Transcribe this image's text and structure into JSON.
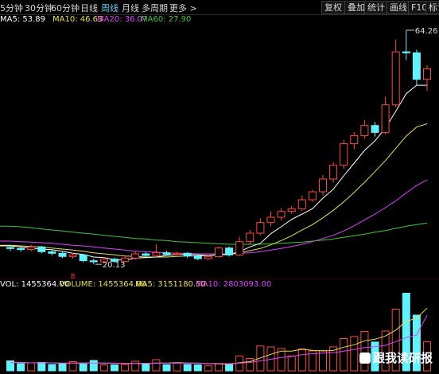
{
  "toolbar": {
    "periods": [
      "5分钟",
      "30分钟",
      "60分钟",
      "日线",
      "周线",
      "月线",
      "多周期",
      "更多 >"
    ],
    "active_period": "周线",
    "right_buttons": [
      "复权",
      "叠加",
      "统计",
      "画线",
      "F10",
      "标记"
    ]
  },
  "ma_legend": {
    "ma5": "MA5: 53.89",
    "ma10": "MA10: 46.63",
    "ma20": "MA20: 36.07",
    "ma60": "MA60: 27.90"
  },
  "vol_legend": {
    "vol": "VOL: 1455364.00",
    "volume": "VOLUME: 1455364.00",
    "ma5": "MA5: 3151180.50",
    "ma10": "MA10: 2803093.00"
  },
  "annotations": {
    "high": "64.26",
    "low": "20.13",
    "marker": "8"
  },
  "watermark": "跟我读研报",
  "colors": {
    "up": "#ff4a3a",
    "down": "#5ff2ff",
    "ma5": "#ffffff",
    "ma10": "#e8e04a",
    "ma20": "#e040ff",
    "ma60": "#3ac83a",
    "active_tab": "#5fd3ff"
  },
  "chart_data": {
    "type": "candlestick",
    "period": "weekly",
    "candles": [
      [
        23.3,
        23.1,
        23.8,
        22.6
      ],
      [
        23.1,
        22.9,
        23.5,
        22.5
      ],
      [
        22.9,
        23.4,
        23.8,
        22.6
      ],
      [
        23.4,
        22.5,
        23.6,
        22.2
      ],
      [
        22.5,
        22.2,
        22.9,
        21.8
      ],
      [
        22.2,
        21.6,
        22.6,
        21.3
      ],
      [
        21.6,
        21.9,
        22.3,
        21.2
      ],
      [
        21.9,
        20.8,
        22.1,
        20.5
      ],
      [
        20.8,
        20.6,
        21.2,
        20.13
      ],
      [
        20.6,
        21.1,
        21.5,
        20.3
      ],
      [
        21.1,
        20.7,
        21.4,
        20.4
      ],
      [
        20.7,
        21.3,
        21.8,
        20.5
      ],
      [
        21.3,
        22.1,
        22.6,
        21.0
      ],
      [
        22.1,
        21.8,
        22.5,
        21.5
      ],
      [
        21.8,
        22.3,
        23.9,
        21.6
      ],
      [
        22.3,
        22.0,
        22.7,
        21.7
      ],
      [
        22.0,
        22.2,
        22.5,
        21.8
      ],
      [
        22.2,
        21.7,
        22.4,
        21.3
      ],
      [
        21.7,
        21.2,
        22.0,
        20.9
      ],
      [
        21.2,
        21.6,
        21.9,
        21.0
      ],
      [
        21.6,
        23.2,
        23.5,
        21.4
      ],
      [
        23.2,
        21.9,
        23.5,
        21.6
      ],
      [
        21.9,
        24.4,
        25.3,
        21.7
      ],
      [
        24.4,
        26.0,
        26.6,
        23.9
      ],
      [
        26.0,
        28.0,
        28.8,
        25.6
      ],
      [
        28.0,
        29.0,
        30.1,
        27.3
      ],
      [
        29.0,
        30.1,
        30.7,
        28.4
      ],
      [
        30.1,
        30.6,
        31.1,
        29.6
      ],
      [
        30.6,
        32.3,
        33.1,
        30.2
      ],
      [
        32.3,
        33.8,
        34.2,
        31.9
      ],
      [
        33.8,
        36.2,
        37.0,
        33.1
      ],
      [
        36.2,
        38.8,
        39.4,
        35.5
      ],
      [
        38.8,
        42.9,
        43.6,
        38.1
      ],
      [
        42.9,
        44.4,
        45.1,
        41.8
      ],
      [
        44.4,
        46.3,
        47.3,
        43.8
      ],
      [
        46.3,
        45.0,
        47.0,
        44.2
      ],
      [
        45.0,
        50.2,
        51.7,
        44.6
      ],
      [
        50.2,
        60.2,
        62.5,
        49.7
      ],
      [
        60.2,
        60.0,
        64.26,
        58.6
      ],
      [
        60.0,
        55.0,
        60.6,
        53.8
      ],
      [
        55.0,
        57.0,
        57.7,
        52.8
      ]
    ],
    "ma5": [
      23.6,
      23.4,
      23.2,
      23.0,
      22.9,
      22.6,
      22.2,
      22.0,
      21.5,
      21.4,
      21.0,
      20.9,
      21.3,
      21.4,
      21.5,
      21.8,
      22.0,
      22.0,
      21.9,
      21.8,
      22.0,
      22.0,
      22.5,
      23.4,
      24.1,
      25.9,
      27.2,
      28.6,
      29.6,
      30.6,
      32.6,
      34.3,
      36.8,
      39.2,
      41.6,
      43.4,
      45.8,
      49.0,
      52.3,
      53.9,
      53.89
    ],
    "ma10": [
      23.7,
      23.6,
      23.5,
      23.4,
      23.2,
      23.0,
      22.8,
      22.6,
      22.3,
      22.1,
      21.9,
      21.7,
      21.6,
      21.5,
      21.5,
      21.5,
      21.6,
      21.7,
      21.7,
      21.8,
      21.9,
      22.0,
      22.3,
      22.7,
      23.1,
      23.8,
      24.6,
      25.5,
      26.6,
      27.6,
      28.9,
      30.3,
      31.9,
      33.7,
      35.6,
      37.6,
      39.7,
      42.0,
      44.3,
      46.0,
      46.63
    ],
    "ma20": [
      24.5,
      24.4,
      24.3,
      24.2,
      24.1,
      23.9,
      23.7,
      23.6,
      23.4,
      23.2,
      23.0,
      22.8,
      22.6,
      22.5,
      22.4,
      22.3,
      22.2,
      22.2,
      22.1,
      22.1,
      22.1,
      22.1,
      22.2,
      22.3,
      22.5,
      22.8,
      23.1,
      23.5,
      23.9,
      24.4,
      25.0,
      25.6,
      26.4,
      27.4,
      28.5,
      29.6,
      30.8,
      32.1,
      33.6,
      35.0,
      36.07
    ],
    "ma60": [
      27.3,
      27.2,
      27.0,
      26.8,
      26.6,
      26.4,
      26.2,
      26.0,
      25.8,
      25.6,
      25.4,
      25.2,
      25.0,
      24.9,
      24.7,
      24.6,
      24.4,
      24.3,
      24.2,
      24.1,
      24.0,
      23.9,
      23.9,
      23.9,
      23.9,
      24.0,
      24.1,
      24.2,
      24.3,
      24.5,
      24.7,
      24.9,
      25.2,
      25.5,
      25.8,
      26.2,
      26.5,
      26.9,
      27.3,
      27.6,
      27.9
    ],
    "volumes": [
      500000.0,
      360000.0,
      400000.0,
      420000.0,
      320000.0,
      350000.0,
      460000.0,
      350000.0,
      520000.0,
      300000.0,
      300000.0,
      320000.0,
      480000.0,
      350000.0,
      560000.0,
      310000.0,
      410000.0,
      320000.0,
      300000.0,
      250000.0,
      360000.0,
      310000.0,
      750000.0,
      620000.0,
      1250000.0,
      1200000.0,
      1120000.0,
      750000.0,
      1100000.0,
      1000000.0,
      1020000.0,
      1200000.0,
      1620000.0,
      1720000.0,
      1980000.0,
      1450000.0,
      2000000.0,
      3100000.0,
      3900000.0,
      2800000.0,
      1455364.0
    ],
    "vol_ma5": [
      430000.0,
      420000.0,
      400000.0,
      410000.0,
      400000.0,
      380000.0,
      390000.0,
      390000.0,
      400000.0,
      390000.0,
      380000.0,
      370000.0,
      370000.0,
      360000.0,
      390000.0,
      390000.0,
      410000.0,
      390000.0,
      390000.0,
      360000.0,
      350000.0,
      320000.0,
      410000.0,
      460000.0,
      650000.0,
      830000.0,
      990000.0,
      990000.0,
      1080000.0,
      1030000.0,
      1000000.0,
      1020000.0,
      1190000.0,
      1310000.0,
      1510000.0,
      1590000.0,
      1750000.0,
      2050000.0,
      2490000.0,
      2650000.0,
      3150000.0
    ],
    "vol_ma10": [
      410000.0,
      410000.0,
      400000.0,
      400000.0,
      400000.0,
      390000.0,
      390000.0,
      390000.0,
      390000.0,
      390000.0,
      390000.0,
      380000.0,
      380000.0,
      380000.0,
      390000.0,
      380000.0,
      390000.0,
      380000.0,
      380000.0,
      370000.0,
      370000.0,
      360000.0,
      390000.0,
      420000.0,
      500000.0,
      580000.0,
      670000.0,
      720000.0,
      810000.0,
      860000.0,
      890000.0,
      910000.0,
      990000.0,
      1070000.0,
      1170000.0,
      1210000.0,
      1280000.0,
      1470000.0,
      1670000.0,
      1810000.0,
      2800000.0
    ]
  }
}
